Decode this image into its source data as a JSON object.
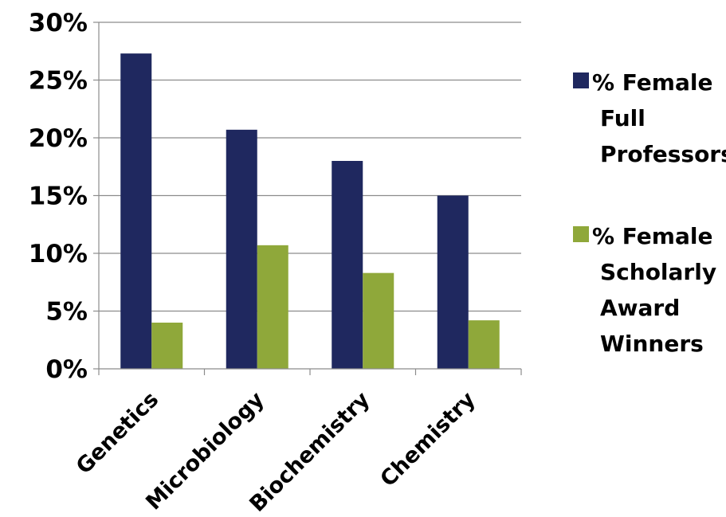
{
  "chart_data": {
    "type": "bar",
    "title": "",
    "xlabel": "",
    "ylabel": "",
    "categories": [
      "Genetics",
      "Microbiology",
      "Biochemistry",
      "Chemistry"
    ],
    "series": [
      {
        "name": "% Female Full Professors",
        "legend_lines": [
          "% Female",
          "Full",
          "Professors"
        ],
        "color": "#1f285f",
        "values": [
          27.3,
          20.7,
          18.0,
          15.0
        ]
      },
      {
        "name": "% Female Scholarly Award Winners",
        "legend_lines": [
          "% Female",
          "Scholarly",
          "Award",
          "Winners"
        ],
        "color": "#8fa83a",
        "values": [
          4.0,
          10.7,
          8.3,
          4.2
        ]
      }
    ],
    "ylim": [
      0,
      30
    ],
    "yticks": [
      0,
      5,
      10,
      15,
      20,
      25,
      30
    ],
    "ytick_labels": [
      "0%",
      "5%",
      "10%",
      "15%",
      "20%",
      "25%",
      "30%"
    ],
    "grid": true,
    "legend_position": "right"
  }
}
